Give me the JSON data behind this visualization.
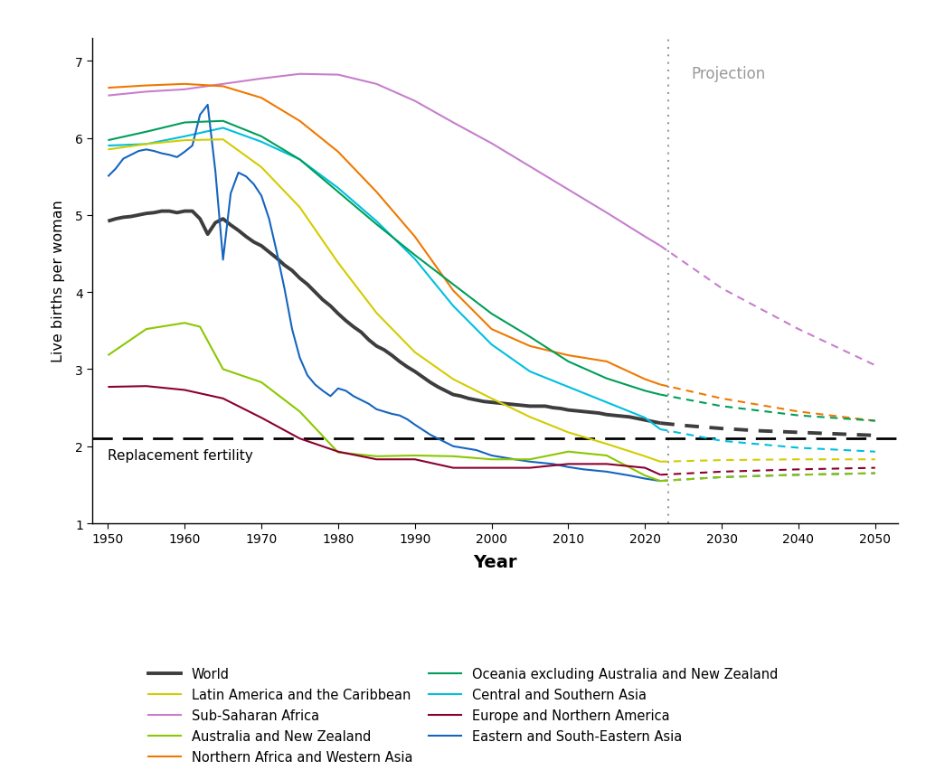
{
  "xlabel": "Year",
  "ylabel": "Live births per woman",
  "projection_year": 2023,
  "replacement_fertility": 2.1,
  "replacement_label": "Replacement fertility",
  "projection_label": "Projection",
  "ylim": [
    1.0,
    7.3
  ],
  "xlim": [
    1948,
    2053
  ],
  "series": {
    "World": {
      "color": "#3d3d3d",
      "linewidth": 2.8,
      "historical": {
        "years": [
          1950,
          1951,
          1952,
          1953,
          1954,
          1955,
          1956,
          1957,
          1958,
          1959,
          1960,
          1961,
          1962,
          1963,
          1964,
          1965,
          1966,
          1967,
          1968,
          1969,
          1970,
          1971,
          1972,
          1973,
          1974,
          1975,
          1976,
          1977,
          1978,
          1979,
          1980,
          1981,
          1982,
          1983,
          1984,
          1985,
          1986,
          1987,
          1988,
          1989,
          1990,
          1991,
          1992,
          1993,
          1994,
          1995,
          1996,
          1997,
          1998,
          1999,
          2000,
          2001,
          2002,
          2003,
          2004,
          2005,
          2006,
          2007,
          2008,
          2009,
          2010,
          2011,
          2012,
          2013,
          2014,
          2015,
          2016,
          2017,
          2018,
          2019,
          2020,
          2021,
          2022
        ],
        "values": [
          4.92,
          4.95,
          4.97,
          4.98,
          5.0,
          5.02,
          5.03,
          5.05,
          5.05,
          5.03,
          5.05,
          5.05,
          4.95,
          4.75,
          4.9,
          4.95,
          4.87,
          4.8,
          4.72,
          4.65,
          4.6,
          4.52,
          4.44,
          4.35,
          4.28,
          4.18,
          4.1,
          4.0,
          3.9,
          3.82,
          3.72,
          3.63,
          3.55,
          3.48,
          3.38,
          3.3,
          3.25,
          3.18,
          3.1,
          3.03,
          2.97,
          2.9,
          2.83,
          2.77,
          2.72,
          2.67,
          2.65,
          2.62,
          2.6,
          2.58,
          2.57,
          2.56,
          2.55,
          2.54,
          2.53,
          2.52,
          2.52,
          2.52,
          2.5,
          2.49,
          2.47,
          2.46,
          2.45,
          2.44,
          2.43,
          2.41,
          2.4,
          2.39,
          2.38,
          2.36,
          2.34,
          2.32,
          2.3
        ]
      },
      "projection": {
        "years": [
          2022,
          2025,
          2030,
          2035,
          2040,
          2045,
          2050
        ],
        "values": [
          2.3,
          2.27,
          2.23,
          2.2,
          2.18,
          2.16,
          2.14
        ]
      }
    },
    "Sub-Saharan Africa": {
      "color": "#C77FCC",
      "linewidth": 1.5,
      "historical": {
        "years": [
          1950,
          1955,
          1960,
          1965,
          1970,
          1975,
          1980,
          1985,
          1990,
          1995,
          2000,
          2005,
          2010,
          2015,
          2020,
          2022
        ],
        "values": [
          6.55,
          6.6,
          6.63,
          6.7,
          6.77,
          6.83,
          6.82,
          6.7,
          6.48,
          6.2,
          5.93,
          5.63,
          5.33,
          5.03,
          4.72,
          4.6
        ]
      },
      "projection": {
        "years": [
          2022,
          2030,
          2040,
          2050
        ],
        "values": [
          4.6,
          4.05,
          3.52,
          3.05
        ]
      }
    },
    "Northern Africa and Western Asia": {
      "color": "#F07800",
      "linewidth": 1.5,
      "historical": {
        "years": [
          1950,
          1955,
          1960,
          1965,
          1970,
          1975,
          1980,
          1985,
          1990,
          1995,
          2000,
          2005,
          2010,
          2015,
          2020,
          2022
        ],
        "values": [
          6.65,
          6.68,
          6.7,
          6.67,
          6.52,
          6.22,
          5.82,
          5.3,
          4.72,
          4.02,
          3.52,
          3.3,
          3.18,
          3.1,
          2.87,
          2.8
        ]
      },
      "projection": {
        "years": [
          2022,
          2030,
          2040,
          2050
        ],
        "values": [
          2.8,
          2.62,
          2.45,
          2.33
        ]
      }
    },
    "Central and Southern Asia": {
      "color": "#00BFDF",
      "linewidth": 1.5,
      "historical": {
        "years": [
          1950,
          1955,
          1960,
          1965,
          1970,
          1975,
          1980,
          1985,
          1990,
          1995,
          2000,
          2005,
          2010,
          2015,
          2020,
          2022
        ],
        "values": [
          5.9,
          5.92,
          6.02,
          6.13,
          5.95,
          5.72,
          5.35,
          4.92,
          4.43,
          3.82,
          3.32,
          2.97,
          2.77,
          2.57,
          2.37,
          2.22
        ]
      },
      "projection": {
        "years": [
          2022,
          2030,
          2040,
          2050
        ],
        "values": [
          2.22,
          2.07,
          1.98,
          1.93
        ]
      }
    },
    "Eastern and South-Eastern Asia": {
      "color": "#1565C0",
      "linewidth": 1.5,
      "historical": {
        "years": [
          1950,
          1951,
          1952,
          1953,
          1954,
          1955,
          1956,
          1957,
          1958,
          1959,
          1960,
          1961,
          1962,
          1963,
          1964,
          1965,
          1966,
          1967,
          1968,
          1969,
          1970,
          1971,
          1972,
          1973,
          1974,
          1975,
          1976,
          1977,
          1978,
          1979,
          1980,
          1981,
          1982,
          1983,
          1984,
          1985,
          1986,
          1987,
          1988,
          1989,
          1990,
          1992,
          1995,
          1998,
          2000,
          2003,
          2005,
          2008,
          2010,
          2012,
          2015,
          2018,
          2020,
          2022
        ],
        "values": [
          5.5,
          5.6,
          5.73,
          5.78,
          5.83,
          5.85,
          5.83,
          5.8,
          5.78,
          5.75,
          5.82,
          5.9,
          6.3,
          6.43,
          5.57,
          4.42,
          5.28,
          5.55,
          5.5,
          5.4,
          5.25,
          4.95,
          4.52,
          4.05,
          3.52,
          3.15,
          2.92,
          2.8,
          2.72,
          2.65,
          2.75,
          2.72,
          2.65,
          2.6,
          2.55,
          2.48,
          2.45,
          2.42,
          2.4,
          2.35,
          2.28,
          2.15,
          2.0,
          1.95,
          1.88,
          1.83,
          1.8,
          1.77,
          1.73,
          1.7,
          1.67,
          1.62,
          1.58,
          1.55
        ]
      },
      "projection": {
        "years": [
          2022,
          2030,
          2040,
          2050
        ],
        "values": [
          1.55,
          1.6,
          1.63,
          1.65
        ]
      }
    },
    "Latin America and the Caribbean": {
      "color": "#D4CC00",
      "linewidth": 1.5,
      "historical": {
        "years": [
          1950,
          1955,
          1960,
          1965,
          1970,
          1975,
          1980,
          1985,
          1990,
          1995,
          2000,
          2005,
          2010,
          2015,
          2020,
          2022
        ],
        "values": [
          5.85,
          5.92,
          5.97,
          5.98,
          5.62,
          5.1,
          4.38,
          3.73,
          3.22,
          2.87,
          2.62,
          2.38,
          2.18,
          2.03,
          1.87,
          1.8
        ]
      },
      "projection": {
        "years": [
          2022,
          2030,
          2040,
          2050
        ],
        "values": [
          1.8,
          1.82,
          1.83,
          1.83
        ]
      }
    },
    "Australia and New Zealand": {
      "color": "#8BC800",
      "linewidth": 1.5,
      "historical": {
        "years": [
          1950,
          1955,
          1960,
          1962,
          1965,
          1970,
          1975,
          1980,
          1985,
          1990,
          1995,
          2000,
          2005,
          2010,
          2015,
          2020,
          2022
        ],
        "values": [
          3.18,
          3.52,
          3.6,
          3.55,
          3.0,
          2.83,
          2.45,
          1.92,
          1.87,
          1.88,
          1.87,
          1.83,
          1.83,
          1.93,
          1.88,
          1.62,
          1.55
        ]
      },
      "projection": {
        "years": [
          2022,
          2030,
          2040,
          2050
        ],
        "values": [
          1.55,
          1.6,
          1.63,
          1.65
        ]
      }
    },
    "Oceania excluding Australia and New Zealand": {
      "color": "#009E5A",
      "linewidth": 1.5,
      "historical": {
        "years": [
          1950,
          1955,
          1960,
          1965,
          1970,
          1975,
          1980,
          1985,
          1990,
          1995,
          2000,
          2005,
          2010,
          2015,
          2020,
          2022
        ],
        "values": [
          5.97,
          6.08,
          6.2,
          6.22,
          6.02,
          5.72,
          5.3,
          4.88,
          4.48,
          4.1,
          3.72,
          3.42,
          3.1,
          2.88,
          2.72,
          2.67
        ]
      },
      "projection": {
        "years": [
          2022,
          2030,
          2040,
          2050
        ],
        "values": [
          2.67,
          2.52,
          2.4,
          2.33
        ]
      }
    },
    "Europe and Northern America": {
      "color": "#8B0030",
      "linewidth": 1.5,
      "historical": {
        "years": [
          1950,
          1955,
          1960,
          1965,
          1970,
          1975,
          1980,
          1985,
          1990,
          1995,
          2000,
          2005,
          2010,
          2015,
          2020,
          2022
        ],
        "values": [
          2.77,
          2.78,
          2.73,
          2.62,
          2.37,
          2.1,
          1.93,
          1.83,
          1.83,
          1.72,
          1.72,
          1.72,
          1.77,
          1.77,
          1.72,
          1.63
        ]
      },
      "projection": {
        "years": [
          2022,
          2030,
          2040,
          2050
        ],
        "values": [
          1.63,
          1.67,
          1.7,
          1.72
        ]
      }
    }
  },
  "legend_order": [
    [
      "World",
      "Latin America and the Caribbean"
    ],
    [
      "Sub-Saharan Africa",
      "Australia and New Zealand"
    ],
    [
      "Northern Africa and Western Asia",
      "Oceania excluding Australia and New Zealand"
    ],
    [
      "Central and Southern Asia",
      "Europe and Northern America"
    ],
    [
      "Eastern and South-Eastern Asia",
      null
    ]
  ]
}
